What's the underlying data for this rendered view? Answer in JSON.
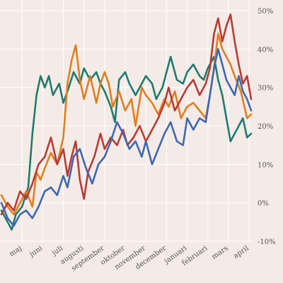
{
  "chart_data": {
    "type": "line",
    "title": "",
    "xlabel": "",
    "ylabel": "",
    "ylim": [
      -10,
      50
    ],
    "y_ticks": [
      "50%",
      "40%",
      "30%",
      "20%",
      "10%",
      "0%",
      "-10%"
    ],
    "y_tick_values": [
      50,
      40,
      30,
      20,
      10,
      0,
      -10
    ],
    "x_ticks": [
      "maj",
      "juni",
      "juli",
      "augusti",
      "september",
      "oktober",
      "november",
      "december",
      "januari",
      "februari",
      "mars",
      "april"
    ],
    "x_tick_positions": [
      1,
      2,
      3,
      4,
      5,
      6,
      7,
      8,
      9,
      10,
      11,
      12
    ],
    "xlim": [
      0,
      12.1
    ],
    "grid": true,
    "legend": "none",
    "series": [
      {
        "color": "#1f7a6e",
        "points": [
          [
            0,
            -2
          ],
          [
            0.3,
            -5
          ],
          [
            0.5,
            -7
          ],
          [
            0.7,
            -3
          ],
          [
            1,
            -1
          ],
          [
            1.3,
            4
          ],
          [
            1.5,
            18
          ],
          [
            1.7,
            28
          ],
          [
            1.9,
            33
          ],
          [
            2.1,
            30
          ],
          [
            2.3,
            33
          ],
          [
            2.5,
            28
          ],
          [
            2.8,
            31
          ],
          [
            3,
            26
          ],
          [
            3.2,
            29
          ],
          [
            3.5,
            34
          ],
          [
            3.8,
            31
          ],
          [
            4,
            35
          ],
          [
            4.3,
            32
          ],
          [
            4.6,
            34
          ],
          [
            4.8,
            31
          ],
          [
            5,
            29
          ],
          [
            5.3,
            25
          ],
          [
            5.5,
            21
          ],
          [
            5.7,
            32
          ],
          [
            6,
            34
          ],
          [
            6.2,
            31
          ],
          [
            6.5,
            28
          ],
          [
            6.8,
            31
          ],
          [
            7,
            33
          ],
          [
            7.3,
            31
          ],
          [
            7.5,
            27
          ],
          [
            7.8,
            30
          ],
          [
            8,
            34
          ],
          [
            8.2,
            38
          ],
          [
            8.5,
            32
          ],
          [
            8.8,
            31
          ],
          [
            9,
            34
          ],
          [
            9.3,
            36
          ],
          [
            9.6,
            33
          ],
          [
            9.8,
            32
          ],
          [
            10,
            35
          ],
          [
            10.3,
            38
          ],
          [
            10.5,
            32
          ],
          [
            10.7,
            28
          ],
          [
            10.9,
            22
          ],
          [
            11.1,
            16
          ],
          [
            11.4,
            19
          ],
          [
            11.7,
            22
          ],
          [
            11.9,
            17
          ],
          [
            12.1,
            18
          ]
        ]
      },
      {
        "color": "#e07e1f",
        "points": [
          [
            0,
            2
          ],
          [
            0.3,
            -1
          ],
          [
            0.6,
            -3
          ],
          [
            0.9,
            0
          ],
          [
            1.2,
            3
          ],
          [
            1.5,
            -1
          ],
          [
            1.7,
            8
          ],
          [
            1.9,
            6
          ],
          [
            2.1,
            9
          ],
          [
            2.4,
            13
          ],
          [
            2.7,
            10
          ],
          [
            3,
            17
          ],
          [
            3.2,
            31
          ],
          [
            3.4,
            37
          ],
          [
            3.6,
            41
          ],
          [
            3.8,
            32
          ],
          [
            4,
            27
          ],
          [
            4.3,
            33
          ],
          [
            4.6,
            26
          ],
          [
            4.8,
            31
          ],
          [
            5,
            34
          ],
          [
            5.2,
            31
          ],
          [
            5.4,
            25
          ],
          [
            5.7,
            29
          ],
          [
            6,
            24
          ],
          [
            6.3,
            27
          ],
          [
            6.5,
            20
          ],
          [
            6.8,
            30
          ],
          [
            7,
            28
          ],
          [
            7.3,
            26
          ],
          [
            7.6,
            23
          ],
          [
            7.9,
            27
          ],
          [
            8.1,
            25
          ],
          [
            8.4,
            29
          ],
          [
            8.7,
            22
          ],
          [
            9,
            25
          ],
          [
            9.3,
            26
          ],
          [
            9.6,
            24
          ],
          [
            9.9,
            22
          ],
          [
            10.1,
            28
          ],
          [
            10.3,
            35
          ],
          [
            10.5,
            44
          ],
          [
            10.7,
            40
          ],
          [
            10.9,
            38
          ],
          [
            11.1,
            36
          ],
          [
            11.3,
            33
          ],
          [
            11.6,
            29
          ],
          [
            11.9,
            22
          ],
          [
            12.1,
            23
          ]
        ]
      },
      {
        "color": "#b83a36",
        "points": [
          [
            0,
            -3
          ],
          [
            0.3,
            0
          ],
          [
            0.6,
            -2
          ],
          [
            0.9,
            3
          ],
          [
            1.2,
            1
          ],
          [
            1.5,
            5
          ],
          [
            1.8,
            10
          ],
          [
            2.1,
            12
          ],
          [
            2.4,
            17
          ],
          [
            2.7,
            10
          ],
          [
            3,
            14
          ],
          [
            3.2,
            7
          ],
          [
            3.4,
            12
          ],
          [
            3.6,
            16
          ],
          [
            3.8,
            6
          ],
          [
            4,
            1
          ],
          [
            4.2,
            8
          ],
          [
            4.5,
            12
          ],
          [
            4.8,
            18
          ],
          [
            5,
            14
          ],
          [
            5.3,
            17
          ],
          [
            5.6,
            15
          ],
          [
            5.9,
            19
          ],
          [
            6.1,
            15
          ],
          [
            6.4,
            17
          ],
          [
            6.7,
            20
          ],
          [
            7,
            16
          ],
          [
            7.3,
            19
          ],
          [
            7.6,
            22
          ],
          [
            7.9,
            26
          ],
          [
            8.1,
            30
          ],
          [
            8.4,
            24
          ],
          [
            8.7,
            27
          ],
          [
            9,
            30
          ],
          [
            9.3,
            32
          ],
          [
            9.6,
            28
          ],
          [
            9.9,
            31
          ],
          [
            10.1,
            35
          ],
          [
            10.3,
            44
          ],
          [
            10.5,
            48
          ],
          [
            10.7,
            42
          ],
          [
            10.9,
            46
          ],
          [
            11.1,
            49
          ],
          [
            11.3,
            42
          ],
          [
            11.5,
            36
          ],
          [
            11.7,
            31
          ],
          [
            11.9,
            33
          ],
          [
            12.1,
            27
          ]
        ]
      },
      {
        "color": "#3e67b1",
        "points": [
          [
            0,
            0
          ],
          [
            0.3,
            -4
          ],
          [
            0.6,
            -6
          ],
          [
            0.9,
            -3
          ],
          [
            1.2,
            -2
          ],
          [
            1.5,
            -4
          ],
          [
            1.8,
            -1
          ],
          [
            2.1,
            3
          ],
          [
            2.4,
            4
          ],
          [
            2.7,
            2
          ],
          [
            3,
            7
          ],
          [
            3.2,
            4
          ],
          [
            3.5,
            12
          ],
          [
            3.8,
            14
          ],
          [
            4.1,
            9
          ],
          [
            4.4,
            5
          ],
          [
            4.7,
            10
          ],
          [
            5,
            12
          ],
          [
            5.3,
            16
          ],
          [
            5.6,
            21
          ],
          [
            5.9,
            18
          ],
          [
            6.2,
            14
          ],
          [
            6.5,
            16
          ],
          [
            6.8,
            12
          ],
          [
            7,
            16
          ],
          [
            7.3,
            10
          ],
          [
            7.6,
            14
          ],
          [
            7.9,
            18
          ],
          [
            8.2,
            21
          ],
          [
            8.5,
            16
          ],
          [
            8.8,
            15
          ],
          [
            9,
            22
          ],
          [
            9.3,
            19
          ],
          [
            9.6,
            22
          ],
          [
            9.9,
            21
          ],
          [
            10.1,
            28
          ],
          [
            10.3,
            35
          ],
          [
            10.5,
            40
          ],
          [
            10.7,
            36
          ],
          [
            10.9,
            32
          ],
          [
            11.1,
            30
          ],
          [
            11.3,
            28
          ],
          [
            11.5,
            33
          ],
          [
            11.7,
            29
          ],
          [
            11.9,
            27
          ],
          [
            12.1,
            24
          ]
        ]
      }
    ]
  }
}
